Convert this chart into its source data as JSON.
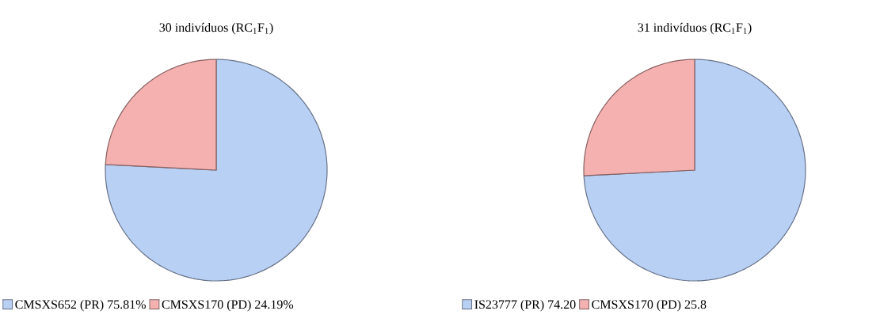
{
  "chart_data": [
    {
      "type": "pie",
      "title": "30 indivíduos (RC$_{1}$F$_{1}$)",
      "categories": [
        "CMSXS652 (PR)",
        "CMSXS170 (PD)"
      ],
      "values": [
        75.81,
        24.19
      ],
      "value_labels": [
        "75.81%",
        "24.19%"
      ],
      "colors": [
        "#b9d0f5",
        "#f5b0b0"
      ],
      "legend": "bottom"
    },
    {
      "type": "pie",
      "title": "31 indivíduos (RC$_{1}$F$_{1}$)",
      "categories": [
        "IS23777 (PR)",
        "CMSXS170 (PD)"
      ],
      "values": [
        74.2,
        25.8
      ],
      "value_labels": [
        "74.20",
        "25.8"
      ],
      "colors": [
        "#b9d0f5",
        "#f5b0b0"
      ],
      "legend": "bottom"
    }
  ]
}
